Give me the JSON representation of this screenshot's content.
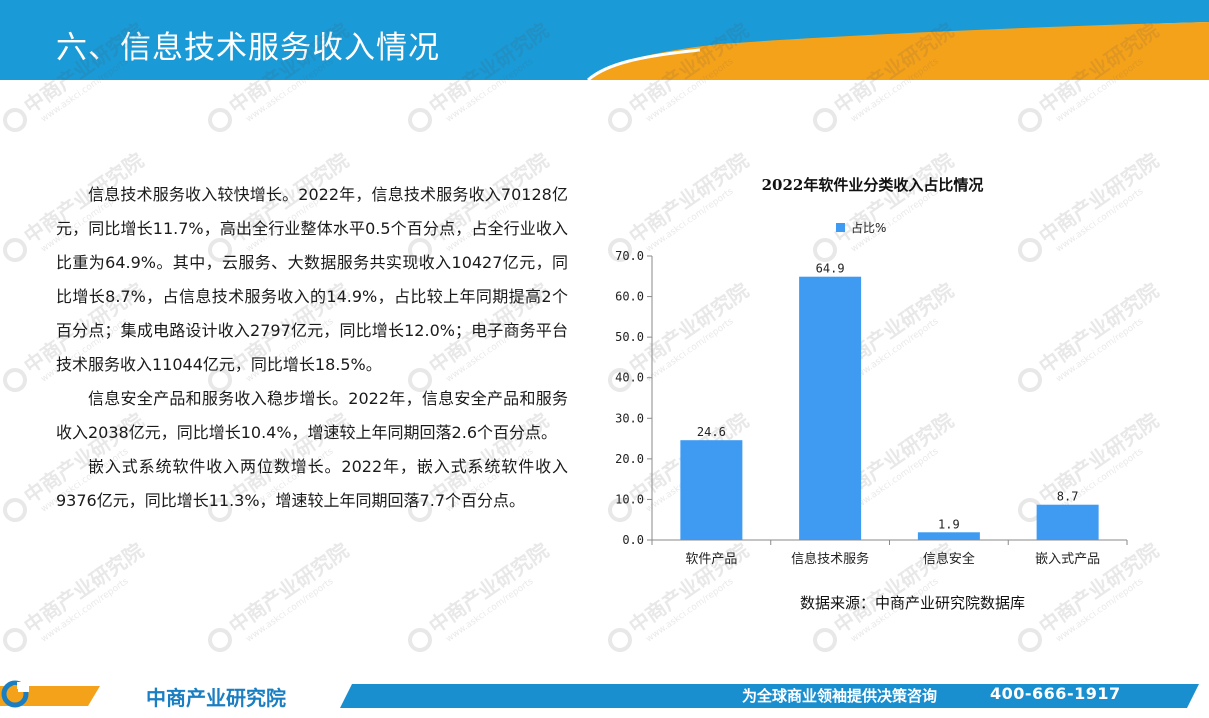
{
  "header": {
    "title": "六、信息技术服务收入情况"
  },
  "watermark": {
    "brand": "中商产业研究院",
    "url": "www.askci.com/reports"
  },
  "paragraphs": [
    "信息技术服务收入较快增长。2022年，信息技术服务收入70128亿元，同比增长11.7%，高出全行业整体水平0.5个百分点，占全行业收入比重为64.9%。其中，云服务、大数据服务共实现收入10427亿元，同比增长8.7%，占信息技术服务收入的14.9%，占比较上年同期提高2个百分点；集成电路设计收入2797亿元，同比增长12.0%；电子商务平台技术服务收入11044亿元，同比增长18.5%。",
    "信息安全产品和服务收入稳步增长。2022年，信息安全产品和服务收入2038亿元，同比增长10.4%，增速较上年同期回落2.6个百分点。",
    "嵌入式系统软件收入两位数增长。2022年，嵌入式系统软件收入9376亿元，同比增长11.3%，增速较上年同期回落7.7个百分点。"
  ],
  "chart_data": {
    "type": "bar",
    "title": "2022年软件业分类收入占比情况",
    "categories": [
      "软件产品",
      "信息技术服务",
      "信息安全",
      "嵌入式产品"
    ],
    "series": [
      {
        "name": "占比%",
        "values": [
          24.6,
          64.9,
          1.9,
          8.7
        ],
        "color": "#3f9af2"
      }
    ],
    "value_labels": [
      "24.6",
      "64.9",
      "1.9",
      "8.7"
    ],
    "ylim": [
      0,
      70
    ],
    "yticks": [
      "0.0",
      "10.0",
      "20.0",
      "30.0",
      "40.0",
      "50.0",
      "60.0",
      "70.0"
    ],
    "xlabel": "",
    "ylabel": "",
    "grid": false,
    "legend_position": "top"
  },
  "source": "数据来源：中商产业研究院数据库",
  "footer": {
    "brand": "中商产业研究院",
    "slogan": "为全球商业领袖提供决策咨询",
    "phone": "400-666-1917"
  },
  "colors": {
    "header_blue": "#1a9ad6",
    "accent_orange": "#f5a21b",
    "bar": "#3f9af2",
    "footer_blue": "#1a8fd0"
  }
}
